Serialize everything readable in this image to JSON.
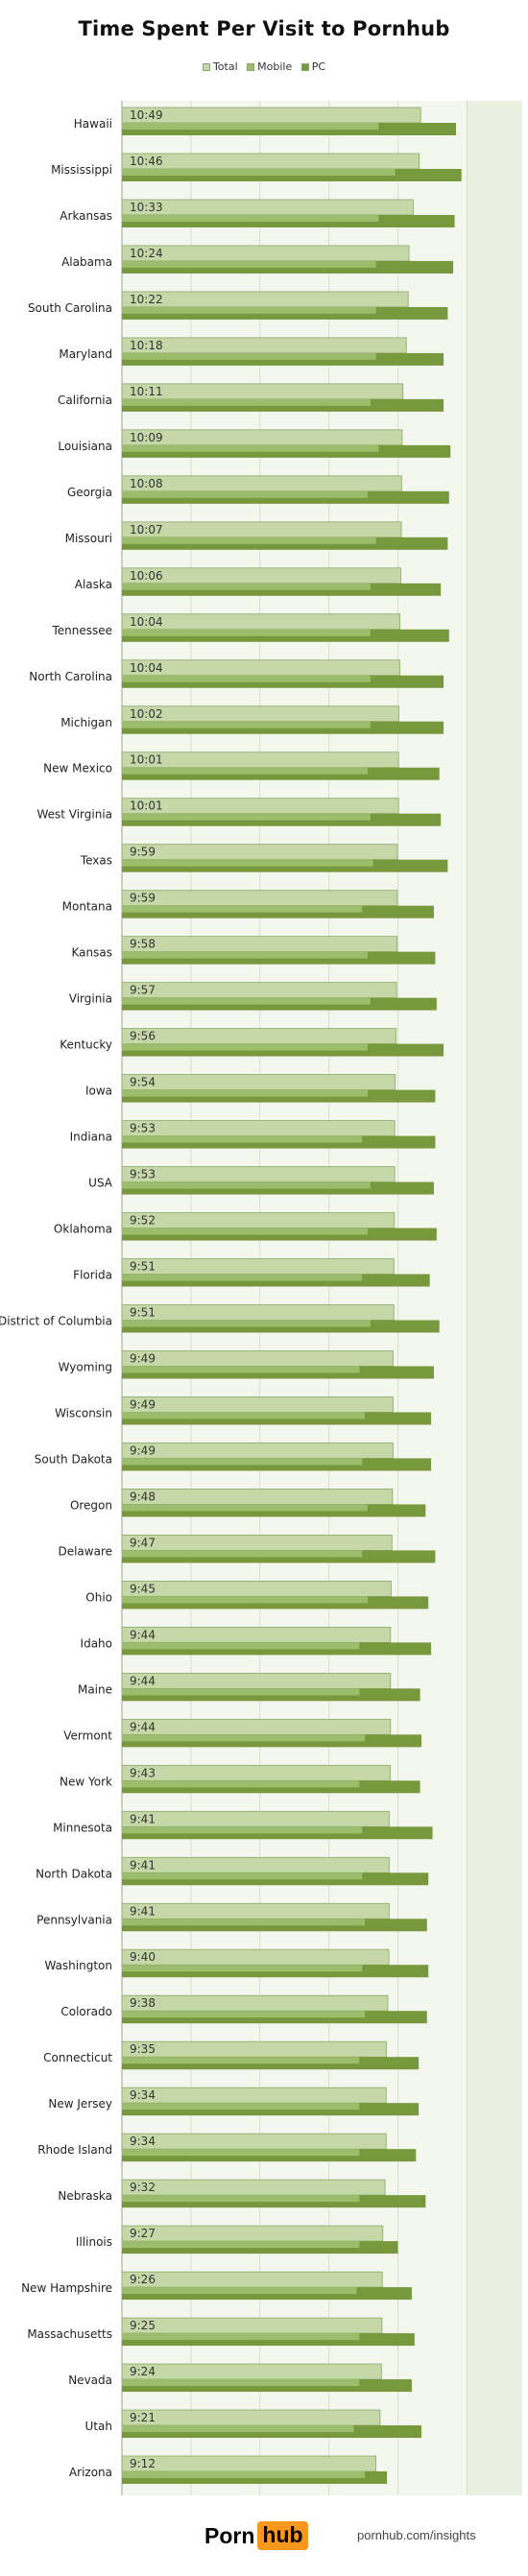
{
  "chart_data": {
    "type": "bar",
    "orientation": "horizontal",
    "title": "Time Spent Per Visit to Pornhub",
    "legend": [
      "Total",
      "Mobile",
      "PC"
    ],
    "legend_position": "top-center",
    "x_unit": "minutes:seconds",
    "grid": true,
    "xlim": [
      0,
      14.5
    ],
    "categories": [
      "Hawaii",
      "Mississippi",
      "Arkansas",
      "Alabama",
      "South Carolina",
      "Maryland",
      "California",
      "Louisiana",
      "Georgia",
      "Missouri",
      "Alaska",
      "Tennessee",
      "North Carolina",
      "Michigan",
      "New Mexico",
      "West Virginia",
      "Texas",
      "Montana",
      "Kansas",
      "Virginia",
      "Kentucky",
      "Iowa",
      "Indiana",
      "USA",
      "Oklahoma",
      "Florida",
      "District of Columbia",
      "Wyoming",
      "Wisconsin",
      "South Dakota",
      "Oregon",
      "Delaware",
      "Ohio",
      "Idaho",
      "Maine",
      "Vermont",
      "New York",
      "Minnesota",
      "North Dakota",
      "Pennsylvania",
      "Washington",
      "Colorado",
      "Connecticut",
      "New Jersey",
      "Rhode Island",
      "Nebraska",
      "Illinois",
      "New Hampshire",
      "Massachusetts",
      "Nevada",
      "Utah",
      "Arizona"
    ],
    "total_labels": [
      "10:49",
      "10:46",
      "10:33",
      "10:24",
      "10:22",
      "10:18",
      "10:11",
      "10:09",
      "10:08",
      "10:07",
      "10:06",
      "10:04",
      "10:04",
      "10:02",
      "10:01",
      "10:01",
      "9:59",
      "9:59",
      "9:58",
      "9:57",
      "9:56",
      "9:54",
      "9:53",
      "9:53",
      "9:52",
      "9:51",
      "9:51",
      "9:49",
      "9:49",
      "9:49",
      "9:48",
      "9:47",
      "9:45",
      "9:44",
      "9:44",
      "9:44",
      "9:43",
      "9:41",
      "9:41",
      "9:41",
      "9:40",
      "9:38",
      "9:35",
      "9:34",
      "9:34",
      "9:32",
      "9:27",
      "9:26",
      "9:25",
      "9:24",
      "9:21",
      "9:12"
    ],
    "series": [
      {
        "name": "Total",
        "color": "#c6d8a8",
        "values": [
          10.82,
          10.77,
          10.55,
          10.4,
          10.37,
          10.3,
          10.18,
          10.15,
          10.13,
          10.12,
          10.1,
          10.07,
          10.07,
          10.03,
          10.02,
          10.02,
          9.98,
          9.98,
          9.97,
          9.95,
          9.93,
          9.9,
          9.88,
          9.88,
          9.87,
          9.85,
          9.85,
          9.82,
          9.82,
          9.82,
          9.8,
          9.78,
          9.75,
          9.73,
          9.73,
          9.73,
          9.72,
          9.68,
          9.68,
          9.68,
          9.67,
          9.63,
          9.58,
          9.57,
          9.57,
          9.53,
          9.45,
          9.43,
          9.42,
          9.4,
          9.35,
          9.2
        ]
      },
      {
        "name": "Mobile",
        "color": "#9bbd6c",
        "values": [
          9.3,
          9.9,
          9.3,
          9.2,
          9.2,
          9.2,
          9.0,
          9.3,
          8.9,
          9.2,
          9.0,
          9.0,
          9.0,
          9.0,
          8.9,
          9.0,
          9.1,
          8.7,
          8.9,
          9.0,
          8.9,
          8.9,
          8.7,
          9.0,
          8.9,
          8.7,
          9.0,
          8.6,
          8.8,
          8.7,
          8.9,
          8.7,
          8.9,
          8.6,
          8.6,
          8.8,
          8.6,
          8.7,
          8.7,
          8.8,
          8.7,
          8.8,
          8.6,
          8.6,
          8.6,
          8.6,
          8.6,
          8.5,
          8.6,
          8.6,
          8.4,
          8.8
        ]
      },
      {
        "name": "PC",
        "color": "#78983e",
        "values": [
          12.1,
          12.3,
          12.05,
          12.0,
          11.8,
          11.65,
          11.65,
          11.9,
          11.85,
          11.8,
          11.55,
          11.85,
          11.65,
          11.65,
          11.5,
          11.55,
          11.8,
          11.3,
          11.35,
          11.4,
          11.65,
          11.35,
          11.35,
          11.3,
          11.4,
          11.15,
          11.5,
          11.3,
          11.2,
          11.2,
          11.0,
          11.35,
          11.1,
          11.2,
          10.8,
          10.85,
          10.8,
          11.25,
          11.1,
          11.05,
          11.1,
          11.05,
          10.75,
          10.75,
          10.65,
          11.0,
          10.0,
          10.5,
          10.6,
          10.5,
          10.85,
          9.6
        ]
      }
    ]
  },
  "legend_items": {
    "total": "Total",
    "mobile": "Mobile",
    "pc": "PC"
  },
  "footer": {
    "brand_part1": "Porn",
    "brand_part2": "hub",
    "url": "pornhub.com/insights"
  }
}
